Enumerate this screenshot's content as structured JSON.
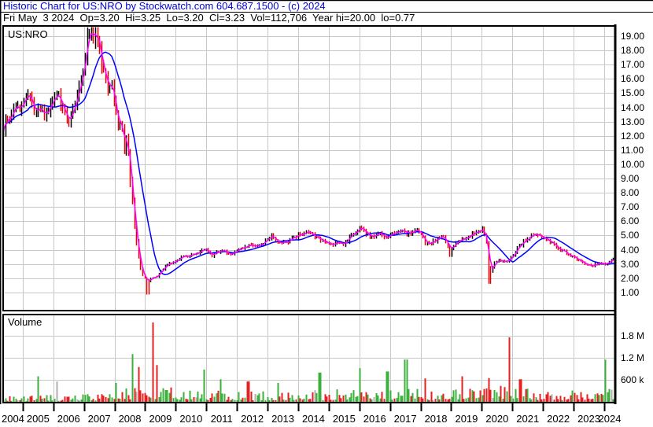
{
  "header": {
    "title": "Historic Chart for US:NRO by Stockwatch.com 604.687.1500 - (c) 2024",
    "quote_line": "Fri May  3 2024  Op=3.20  Hi=3.25  Lo=3.20  Cl=3.23  Vol=112,706  Year hi=20.00  lo=0.77"
  },
  "chart": {
    "symbol_label": "US:NRO",
    "volume_label": "Volume",
    "price_axis_ticks": [
      "19.00",
      "18.00",
      "17.00",
      "16.00",
      "15.00",
      "14.00",
      "13.00",
      "12.00",
      "11.00",
      "10.00",
      "9.00",
      "8.00",
      "7.00",
      "6.00",
      "5.00",
      "4.00",
      "3.00",
      "2.00",
      "1.00"
    ],
    "volume_axis_ticks": [
      "1.8 M",
      "1.2 M",
      "600 k"
    ],
    "year_labels": [
      "2004",
      "2005",
      "2006",
      "2007",
      "2008",
      "2009",
      "2010",
      "2011",
      "2012",
      "2013",
      "2014",
      "2015",
      "2016",
      "2017",
      "2018",
      "2019",
      "2020",
      "2021",
      "2022",
      "2023",
      "2024"
    ]
  },
  "colors": {
    "title_text": "#0000dd",
    "body_text": "#000000",
    "background": "#ffffff",
    "grid": "#c8c8c8",
    "panel_border": "#000000",
    "bar_up": "#000000",
    "bar_down": "#e60000",
    "ma_fast": "#ff00ff",
    "ma_slow": "#0000ff",
    "vol_up": "#3cb03c",
    "vol_down": "#e62020",
    "vol_neutral": "#b0b0b0"
  },
  "chart_data": {
    "type": "candlestick",
    "title": "Historic Chart for US:NRO",
    "symbol": "US:NRO",
    "x_range": [
      2004.36,
      2024.36
    ],
    "price_axis": {
      "tick_values": [
        19,
        18,
        17,
        16,
        15,
        14,
        13,
        12,
        11,
        10,
        9,
        8,
        7,
        6,
        5,
        4,
        3,
        2,
        1
      ],
      "visible_range": [
        0.6,
        19.8
      ]
    },
    "volume_axis": {
      "tick_values": [
        1800000,
        1200000,
        600000
      ]
    },
    "bars": 300,
    "last_quote": {
      "date_label": "Fri May  3 2024",
      "open": 3.2,
      "high": 3.25,
      "low": 3.2,
      "close": 3.23,
      "volume": 112706,
      "year_high": 20.0,
      "year_low": 0.77
    },
    "series": [
      {
        "name": "price-ohlc-bars",
        "style": "ohlc-bars",
        "anchors": [
          [
            2004.36,
            12.6
          ],
          [
            2004.45,
            13.6
          ],
          [
            2004.55,
            13.1
          ],
          [
            2004.7,
            14.2
          ],
          [
            2004.85,
            13.7
          ],
          [
            2005.0,
            14.4
          ],
          [
            2005.1,
            15.0
          ],
          [
            2005.25,
            14.3
          ],
          [
            2005.4,
            13.4
          ],
          [
            2005.55,
            14.0
          ],
          [
            2005.7,
            13.2
          ],
          [
            2005.85,
            13.8
          ],
          [
            2006.0,
            14.5
          ],
          [
            2006.15,
            15.1
          ],
          [
            2006.3,
            14.0
          ],
          [
            2006.45,
            13.1
          ],
          [
            2006.6,
            13.7
          ],
          [
            2006.75,
            14.6
          ],
          [
            2006.9,
            15.8
          ],
          [
            2007.0,
            17.2
          ],
          [
            2007.1,
            18.8
          ],
          [
            2007.2,
            19.6
          ],
          [
            2007.3,
            18.4
          ],
          [
            2007.4,
            19.7
          ],
          [
            2007.5,
            18.0
          ],
          [
            2007.6,
            15.9
          ],
          [
            2007.7,
            16.6
          ],
          [
            2007.8,
            14.9
          ],
          [
            2007.9,
            15.6
          ],
          [
            2008.0,
            14.1
          ],
          [
            2008.1,
            12.5
          ],
          [
            2008.2,
            13.5
          ],
          [
            2008.3,
            11.1
          ],
          [
            2008.4,
            11.9
          ],
          [
            2008.5,
            9.4
          ],
          [
            2008.6,
            6.9
          ],
          [
            2008.7,
            4.7
          ],
          [
            2008.8,
            3.1
          ],
          [
            2008.9,
            2.3
          ],
          [
            2009.0,
            1.95
          ],
          [
            2009.08,
            1.65
          ],
          [
            2009.2,
            2.05
          ],
          [
            2009.35,
            2.0
          ],
          [
            2009.5,
            2.5
          ],
          [
            2009.65,
            2.85
          ],
          [
            2009.8,
            3.05
          ],
          [
            2010.0,
            3.3
          ],
          [
            2010.25,
            3.5
          ],
          [
            2010.5,
            3.65
          ],
          [
            2010.75,
            3.85
          ],
          [
            2011.0,
            4.0
          ],
          [
            2011.15,
            3.6
          ],
          [
            2011.35,
            3.8
          ],
          [
            2011.55,
            3.9
          ],
          [
            2011.75,
            3.65
          ],
          [
            2012.0,
            3.95
          ],
          [
            2012.2,
            4.15
          ],
          [
            2012.45,
            4.3
          ],
          [
            2012.7,
            4.25
          ],
          [
            2012.9,
            4.6
          ],
          [
            2013.1,
            4.95
          ],
          [
            2013.3,
            4.6
          ],
          [
            2013.5,
            4.45
          ],
          [
            2013.7,
            4.6
          ],
          [
            2013.9,
            4.9
          ],
          [
            2014.1,
            5.1
          ],
          [
            2014.3,
            5.35
          ],
          [
            2014.5,
            4.95
          ],
          [
            2014.7,
            4.7
          ],
          [
            2014.95,
            4.55
          ],
          [
            2015.1,
            4.35
          ],
          [
            2015.3,
            4.5
          ],
          [
            2015.5,
            4.4
          ],
          [
            2015.7,
            4.9
          ],
          [
            2015.9,
            5.3
          ],
          [
            2016.05,
            5.55
          ],
          [
            2016.25,
            5.05
          ],
          [
            2016.45,
            4.95
          ],
          [
            2016.65,
            5.1
          ],
          [
            2016.85,
            4.95
          ],
          [
            2017.05,
            5.05
          ],
          [
            2017.25,
            5.2
          ],
          [
            2017.45,
            5.3
          ],
          [
            2017.6,
            5.15
          ],
          [
            2017.8,
            5.3
          ],
          [
            2018.0,
            5.25
          ],
          [
            2018.12,
            4.55
          ],
          [
            2018.3,
            4.45
          ],
          [
            2018.5,
            4.7
          ],
          [
            2018.7,
            5.0
          ],
          [
            2018.85,
            4.5
          ],
          [
            2018.97,
            3.9
          ],
          [
            2019.1,
            4.35
          ],
          [
            2019.3,
            4.7
          ],
          [
            2019.5,
            4.95
          ],
          [
            2019.7,
            5.1
          ],
          [
            2019.9,
            5.35
          ],
          [
            2020.05,
            5.45
          ],
          [
            2020.15,
            4.6
          ],
          [
            2020.22,
            2.6
          ],
          [
            2020.3,
            2.5
          ],
          [
            2020.4,
            3.1
          ],
          [
            2020.55,
            3.3
          ],
          [
            2020.7,
            3.15
          ],
          [
            2020.85,
            3.3
          ],
          [
            2021.0,
            3.6
          ],
          [
            2021.2,
            4.25
          ],
          [
            2021.4,
            4.7
          ],
          [
            2021.6,
            4.95
          ],
          [
            2021.8,
            5.0
          ],
          [
            2022.0,
            4.85
          ],
          [
            2022.2,
            4.55
          ],
          [
            2022.4,
            4.25
          ],
          [
            2022.6,
            3.95
          ],
          [
            2022.8,
            3.7
          ],
          [
            2023.0,
            3.5
          ],
          [
            2023.2,
            3.2
          ],
          [
            2023.4,
            2.95
          ],
          [
            2023.6,
            2.85
          ],
          [
            2023.8,
            3.1
          ],
          [
            2023.95,
            2.95
          ],
          [
            2024.1,
            3.05
          ],
          [
            2024.25,
            3.3
          ],
          [
            2024.36,
            3.23
          ]
        ]
      },
      {
        "name": "moving-average-fast",
        "style": "line",
        "color_key": "ma_fast",
        "window_bars": 3
      },
      {
        "name": "moving-average-slow",
        "style": "line",
        "color_key": "ma_slow",
        "window_bars": 13
      }
    ],
    "deep_wicks": [
      [
        2009.08,
        0.85
      ],
      [
        2018.97,
        3.5
      ],
      [
        2020.25,
        1.6
      ]
    ],
    "volume": {
      "base_anchors": [
        [
          2004.36,
          90000
        ],
        [
          2006.0,
          110000
        ],
        [
          2007.5,
          130000
        ],
        [
          2008.3,
          220000
        ],
        [
          2008.8,
          300000
        ],
        [
          2009.5,
          280000
        ],
        [
          2010.5,
          200000
        ],
        [
          2012.0,
          170000
        ],
        [
          2014.0,
          170000
        ],
        [
          2015.5,
          200000
        ],
        [
          2017.0,
          230000
        ],
        [
          2018.0,
          200000
        ],
        [
          2019.0,
          180000
        ],
        [
          2020.2,
          300000
        ],
        [
          2021.0,
          230000
        ],
        [
          2022.0,
          180000
        ],
        [
          2023.0,
          200000
        ],
        [
          2024.36,
          260000
        ]
      ],
      "spikes": [
        [
          2005.5,
          700000,
          "green"
        ],
        [
          2006.1,
          560000,
          "gray"
        ],
        [
          2008.05,
          520000,
          "green"
        ],
        [
          2008.6,
          1300000,
          "green"
        ],
        [
          2008.75,
          950000,
          "red"
        ],
        [
          2009.25,
          2150000,
          "red"
        ],
        [
          2009.4,
          1000000,
          "red"
        ],
        [
          2010.9,
          880000,
          "green"
        ],
        [
          2011.45,
          620000,
          "green"
        ],
        [
          2012.35,
          560000,
          "red"
        ],
        [
          2013.3,
          520000,
          "green"
        ],
        [
          2014.7,
          800000,
          "green"
        ],
        [
          2016.0,
          920000,
          "green"
        ],
        [
          2016.9,
          830000,
          "green"
        ],
        [
          2017.5,
          1150000,
          "green"
        ],
        [
          2018.12,
          640000,
          "red"
        ],
        [
          2019.35,
          700000,
          "red"
        ],
        [
          2020.22,
          650000,
          "red"
        ],
        [
          2020.9,
          1750000,
          "red"
        ],
        [
          2021.25,
          620000,
          "red"
        ],
        [
          2024.0,
          1150000,
          "green"
        ]
      ]
    }
  }
}
